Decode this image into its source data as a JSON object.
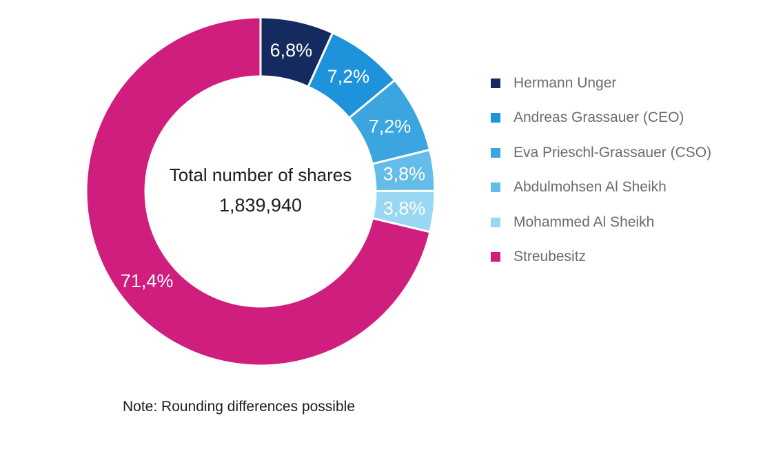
{
  "chart_data": {
    "type": "pie",
    "donut": true,
    "categories": [
      "Hermann Unger",
      "Andreas Grassauer (CEO)",
      "Eva Prieschl-Grassauer (CSO)",
      "Abdulmohsen Al Sheikh",
      "Mohammed Al Sheikh",
      "Streubesitz"
    ],
    "values": [
      6.8,
      7.2,
      7.2,
      3.8,
      3.8,
      71.4
    ],
    "slice_labels": [
      "6,8%",
      "7,2%",
      "7,2%",
      "3,8%",
      "3,8%",
      "71,4%"
    ],
    "colors": [
      "#152A5E",
      "#1E93DB",
      "#3BA5E0",
      "#63BDE8",
      "#9AD7F2",
      "#D01E7E"
    ],
    "start_angle_deg": 0,
    "direction": "clockwise",
    "legend_position": "right",
    "slice_label_color": "#FFFFFF",
    "slice_gap_color": "#FFFFFF",
    "center_title": "Total number of shares",
    "center_value": "1,839,940",
    "note": "Note: Rounding differences possible"
  }
}
